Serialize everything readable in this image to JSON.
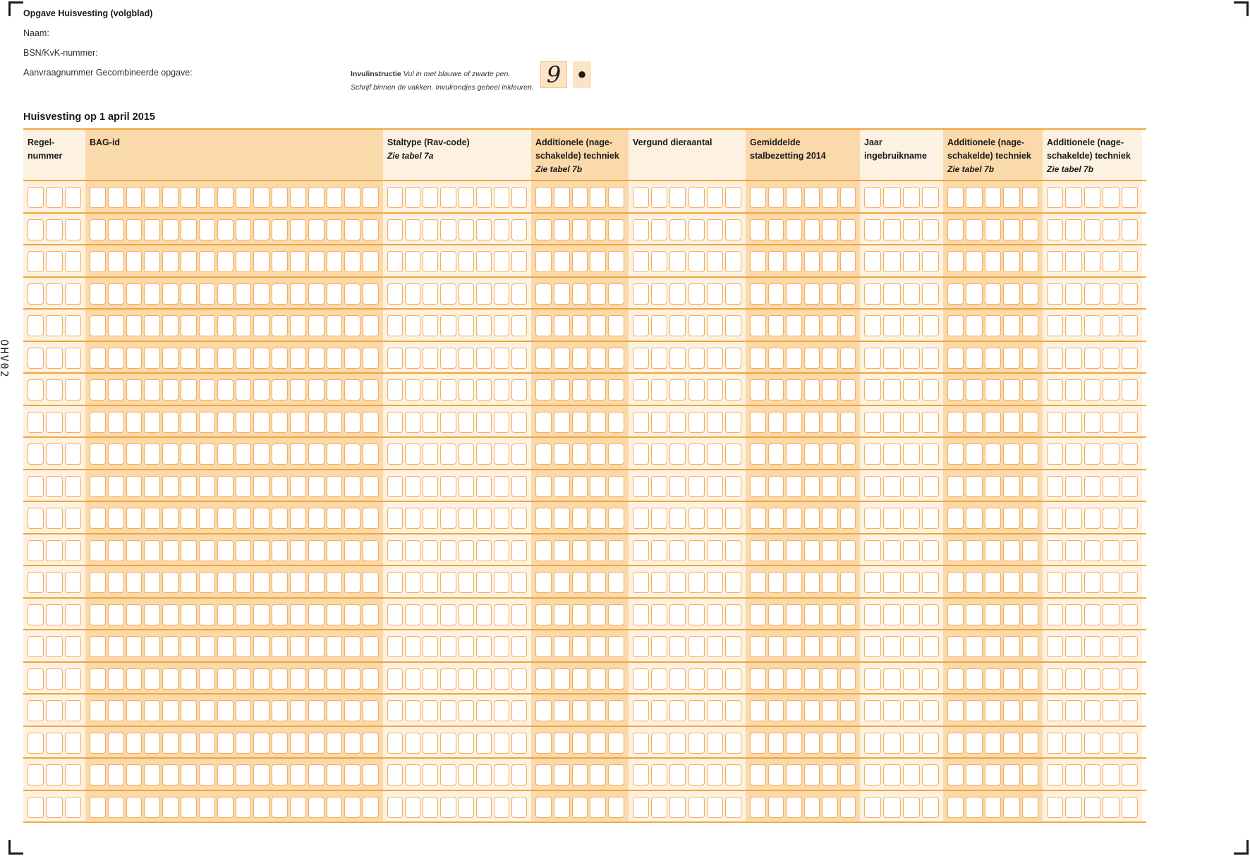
{
  "form": {
    "title": "Opgave Huisvesting (volgblad)",
    "fields": {
      "naam": "Naam:",
      "bsn": "BSN/KvK-nummer:",
      "aanvraag": "Aanvraagnummer Gecombineerde opgave:"
    },
    "side_code": "OHV02"
  },
  "instruction": {
    "label": "Invulinstructie",
    "line1": "Vul in met blauwe of zwarte pen.",
    "line2": "Schrijf binnen de vakken. Invulrondjes geheel inkleuren.",
    "sample_digit": "9",
    "sample_dot": "●"
  },
  "section": {
    "title": "Huisvesting op 1 april 2015"
  },
  "table": {
    "row_count": 20,
    "columns": [
      {
        "key": "regel",
        "label": "Regel-\nnummer",
        "sub": "",
        "boxes": 3
      },
      {
        "key": "bag",
        "label": "BAG-id",
        "sub": "",
        "boxes": 16
      },
      {
        "key": "staltype",
        "label": "Staltype (Rav-code)",
        "sub": "Zie tabel 7a",
        "boxes": 8
      },
      {
        "key": "add1",
        "label": "Additionele (nage-\nschakelde) techniek",
        "sub": "Zie tabel 7b",
        "boxes": 5
      },
      {
        "key": "vergund",
        "label": "Vergund dieraantal",
        "sub": "",
        "boxes": 6
      },
      {
        "key": "gemiddeld",
        "label": "Gemiddelde\nstalbezetting 2014",
        "sub": "",
        "boxes": 6
      },
      {
        "key": "jaar",
        "label": "Jaar\ningebruikname",
        "sub": "",
        "boxes": 4
      },
      {
        "key": "add2",
        "label": "Additionele (nage-\nschakelde) techniek",
        "sub": "Zie tabel 7b",
        "boxes": 5
      },
      {
        "key": "add3",
        "label": "Additionele (nage-\nschakelde) techniek",
        "sub": "Zie tabel 7b",
        "boxes": 5
      }
    ]
  },
  "colors": {
    "orange_line": "#f4a43a",
    "shade_light": "#fdf1e2",
    "shade_dark": "#fad9ab",
    "box_border": "#f2ad5e"
  }
}
